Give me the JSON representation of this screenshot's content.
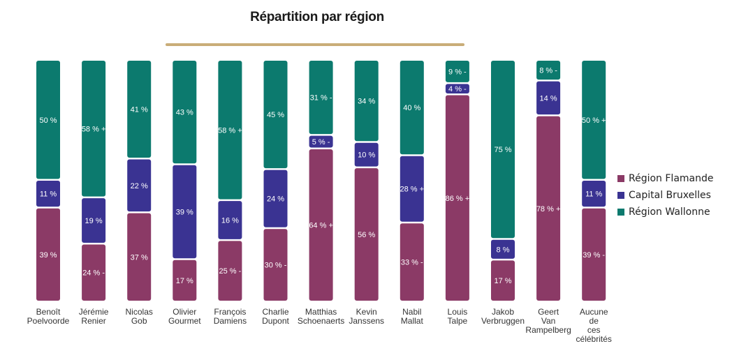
{
  "chart_data": {
    "type": "bar",
    "stacked": true,
    "orientation": "vertical",
    "title": "Répartition par région",
    "categories": [
      [
        "Benoît",
        "Poelvoorde"
      ],
      [
        "Jérémie",
        "Renier"
      ],
      [
        "Nicolas",
        "Gob"
      ],
      [
        "Olivier",
        "Gourmet"
      ],
      [
        "François",
        "Damiens"
      ],
      [
        "Charlie",
        "Dupont"
      ],
      [
        "Matthias",
        "Schoenaerts"
      ],
      [
        "Kevin",
        "Janssens"
      ],
      [
        "Nabil",
        "Mallat"
      ],
      [
        "Louis",
        "Talpe"
      ],
      [
        "Jakob",
        "Verbruggen"
      ],
      [
        "Geert",
        "Van",
        "Rampelberg"
      ],
      [
        "Aucune",
        "de",
        "ces",
        "célébrités"
      ]
    ],
    "series": [
      {
        "name": "Région Flamande",
        "color": "#8b3a66",
        "values": [
          39,
          24,
          37,
          17,
          25,
          30,
          64,
          56,
          33,
          86,
          17,
          78,
          39
        ],
        "labels": [
          "39 %",
          "24 % -",
          "37 %",
          "17 %",
          "25 % -",
          "30 % -",
          "64 % +",
          "56 %",
          "33 % -",
          "86 % +",
          "17 %",
          "78 % +",
          "39 % -"
        ]
      },
      {
        "name": "Capital Bruxelles",
        "color": "#3a3392",
        "values": [
          11,
          19,
          22,
          39,
          16,
          24,
          5,
          10,
          28,
          4,
          8,
          14,
          11
        ],
        "labels": [
          "11 %",
          "19 %",
          "22 %",
          "39 %",
          "16 %",
          "24 %",
          "5 % -",
          "10 %",
          "28 % +",
          "4 % -",
          "8 %",
          "14 %",
          "11 %"
        ]
      },
      {
        "name": "Région Wallonne",
        "color": "#0c7a6e",
        "values": [
          50,
          58,
          41,
          43,
          58,
          45,
          31,
          34,
          40,
          9,
          75,
          8,
          50
        ],
        "labels": [
          "50 %",
          "58 % +",
          "41 %",
          "43 %",
          "58 % +",
          "45 %",
          "31 % -",
          "34 %",
          "40 %",
          "9 % -",
          "75 %",
          "8 % -",
          "50 % +"
        ]
      }
    ],
    "ylim": [
      0,
      100
    ],
    "legend_position": "right",
    "grid": false
  }
}
